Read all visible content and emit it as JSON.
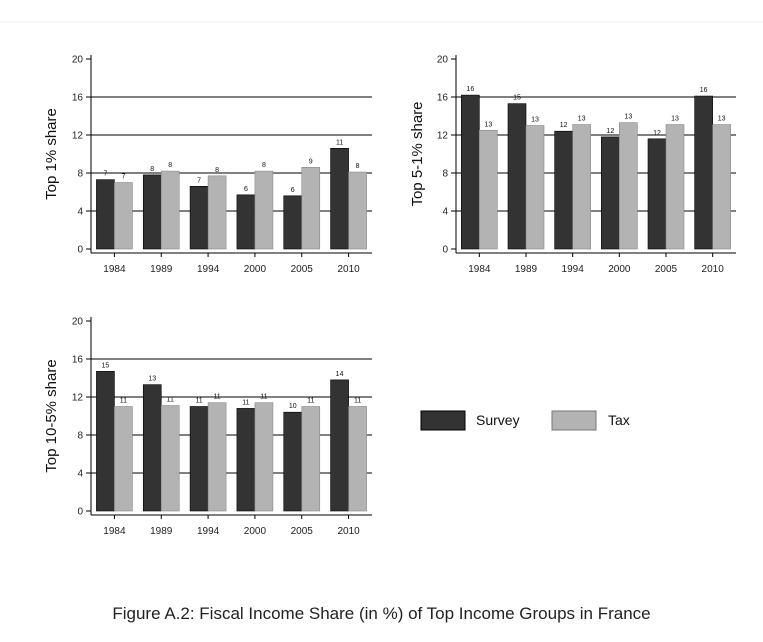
{
  "chart_data": [
    {
      "type": "bar",
      "title": "",
      "xlabel": "",
      "ylabel": "Top 1% share",
      "ylim": [
        0,
        20
      ],
      "yticks": [
        0,
        4,
        8,
        12,
        16,
        20
      ],
      "grid": true,
      "categories": [
        "1984",
        "1989",
        "1994",
        "2000",
        "2005",
        "2010"
      ],
      "series": [
        {
          "name": "Survey",
          "values": [
            7.3,
            7.8,
            6.6,
            5.7,
            5.6,
            10.6
          ],
          "labels": [
            "7",
            "8",
            "7",
            "6",
            "6",
            "11"
          ]
        },
        {
          "name": "Tax",
          "values": [
            7.0,
            8.2,
            7.7,
            8.2,
            8.6,
            8.1
          ],
          "labels": [
            "7",
            "8",
            "8",
            "8",
            "9",
            "8"
          ]
        }
      ]
    },
    {
      "type": "bar",
      "title": "",
      "xlabel": "",
      "ylabel": "Top 5-1% share",
      "ylim": [
        0,
        20
      ],
      "yticks": [
        0,
        4,
        8,
        12,
        16,
        20
      ],
      "grid": true,
      "categories": [
        "1984",
        "1989",
        "1994",
        "2000",
        "2005",
        "2010"
      ],
      "series": [
        {
          "name": "Survey",
          "values": [
            16.2,
            15.3,
            12.4,
            11.8,
            11.6,
            16.1
          ],
          "labels": [
            "16",
            "15",
            "12",
            "12",
            "12",
            "16"
          ]
        },
        {
          "name": "Tax",
          "values": [
            12.5,
            13.0,
            13.1,
            13.3,
            13.1,
            13.1
          ],
          "labels": [
            "13",
            "13",
            "13",
            "13",
            "13",
            "13"
          ]
        }
      ]
    },
    {
      "type": "bar",
      "title": "",
      "xlabel": "",
      "ylabel": "Top 10-5% share",
      "ylim": [
        0,
        20
      ],
      "yticks": [
        0,
        4,
        8,
        12,
        16,
        20
      ],
      "grid": true,
      "categories": [
        "1984",
        "1989",
        "1994",
        "2000",
        "2005",
        "2010"
      ],
      "series": [
        {
          "name": "Survey",
          "values": [
            14.7,
            13.3,
            11.0,
            10.8,
            10.4,
            13.8
          ],
          "labels": [
            "15",
            "13",
            "11",
            "11",
            "10",
            "14"
          ]
        },
        {
          "name": "Tax",
          "values": [
            11.0,
            11.1,
            11.4,
            11.4,
            11.0,
            11.0
          ],
          "labels": [
            "11",
            "11",
            "11",
            "11",
            "11",
            "11"
          ]
        }
      ]
    }
  ],
  "legend": {
    "placement": "right",
    "items": [
      {
        "label": "Survey",
        "color": "#333333"
      },
      {
        "label": "Tax",
        "color": "#b3b3b3"
      }
    ]
  },
  "colors": {
    "survey": "#333333",
    "tax": "#b3b3b3"
  },
  "caption": "Figure A.2: Fiscal Income Share (in %) of Top Income Groups in France"
}
